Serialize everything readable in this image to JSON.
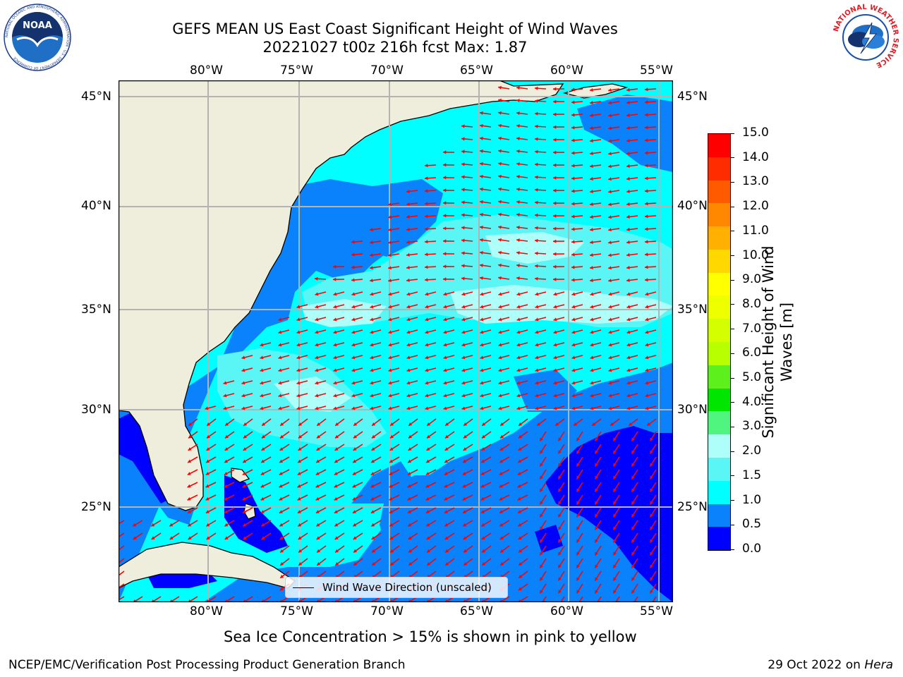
{
  "title": {
    "line1": "GEFS MEAN US East Coast Significant Height of Wind Waves",
    "line2": "20221027 t00z 216h fcst   Max: 1.87"
  },
  "map": {
    "lon_labels": [
      "80°W",
      "75°W",
      "70°W",
      "65°W",
      "60°W",
      "55°W"
    ],
    "lat_labels": [
      "45°N",
      "40°N",
      "35°N",
      "30°N",
      "25°N"
    ],
    "legend_label": "Wind Wave Direction (unscaled)",
    "colors": {
      "land": "#efeddc",
      "sea_0_05": "#0000ff",
      "sea_05_1": "#0a82fb",
      "sea_1_15": "#00ffff",
      "sea_15_2": "#5af5f5",
      "sea_2_3": "#aefefa",
      "arrow": "#ff0000",
      "grid": "#b3b3b3"
    }
  },
  "colorbar": {
    "label_line1": "Significant Height of Wind",
    "label_line2": "Waves [m]",
    "tick_labels": [
      "15.0",
      "14.0",
      "13.0",
      "12.0",
      "11.0",
      "10.0",
      "9.0",
      "8.0",
      "7.0",
      "6.0",
      "5.0",
      "4.0",
      "3.0",
      "2.0",
      "1.5",
      "1.0",
      "0.5",
      "0.0"
    ],
    "colors_top_to_bottom": [
      "#ff0000",
      "#ff2c00",
      "#ff5a00",
      "#ff8800",
      "#ffb000",
      "#ffd800",
      "#ffff00",
      "#eeff00",
      "#d4ff00",
      "#b8ff00",
      "#5ef01c",
      "#00e600",
      "#50f580",
      "#aefefa",
      "#5af5f5",
      "#00ffff",
      "#0a82fb",
      "#0000ff"
    ]
  },
  "footer": {
    "sea_ice_note": "Sea Ice Concentration > 15% is shown in pink to yellow",
    "branch": "NCEP/EMC/Verification Post Processing Product Generation Branch",
    "date": "29 Oct 2022 on ",
    "host": "Hera"
  },
  "logos": {
    "noaa_text": "NOAA",
    "noaa_ring": "NATIONAL OCEANIC AND ATMOSPHERIC ADMINISTRATION · U.S. DEPARTMENT OF COMMERCE",
    "nws_ring": "NATIONAL WEATHER SERVICE"
  }
}
